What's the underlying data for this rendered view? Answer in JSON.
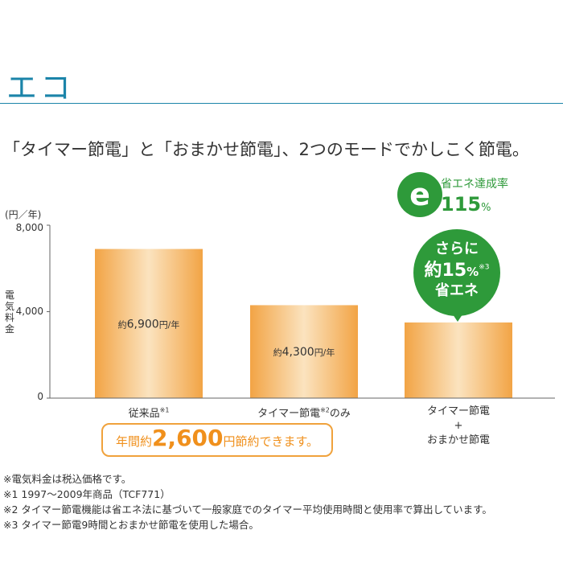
{
  "header": {
    "title": "エコ",
    "subtitle": "「タイマー節電」と「おまかせ節電」、2つのモードでかしこく節電。"
  },
  "eco_badge": {
    "icon": "e",
    "label": "省エネ達成率",
    "value": "115",
    "unit": "%"
  },
  "bubble": {
    "line1": "さらに",
    "line2_prefix": "約",
    "line2_num": "15",
    "line2_pct": "%",
    "line2_note": "※3",
    "line3": "省エネ",
    "color": "#2e9a3a"
  },
  "savings": {
    "prefix": "年間約",
    "amount": "2,600",
    "suffix": "円節約できます。",
    "color": "#f0901c"
  },
  "categories": [
    {
      "name": "従来品",
      "note": "※1",
      "extra": "",
      "line2": "",
      "line3": ""
    },
    {
      "name": "タイマー節電",
      "note": "※2",
      "extra": "のみ",
      "line2": "",
      "line3": ""
    },
    {
      "name": "タイマー節電",
      "note": "",
      "extra": "",
      "line2": "+",
      "line3": "おまかせ節電"
    }
  ],
  "notes": [
    "※電気料金は税込価格です。",
    "※1 1997〜2009年商品（TCF771）",
    "※2 タイマー節電機能は省エネ法に基づいて一般家庭でのタイマー平均使用時間と使用率で算出しています。",
    "※3 タイマー節電9時間とおまかせ節電を使用した場合。"
  ],
  "chart_data": {
    "type": "bar",
    "categories": [
      "従来品",
      "タイマー節電のみ",
      "タイマー節電＋おまかせ節電"
    ],
    "values": [
      6900,
      4300,
      3500
    ],
    "data_labels": [
      {
        "prefix": "約",
        "num": "6,900",
        "unit": "円/年"
      },
      {
        "prefix": "約",
        "num": "4,300",
        "unit": "円/年"
      },
      null
    ],
    "ylabel": "電気料金",
    "yunit": "(円／年)",
    "ylim": [
      0,
      8000
    ],
    "yticks": [
      "0",
      "4,000",
      "8,000"
    ],
    "bar_color": "#f7c27a"
  }
}
